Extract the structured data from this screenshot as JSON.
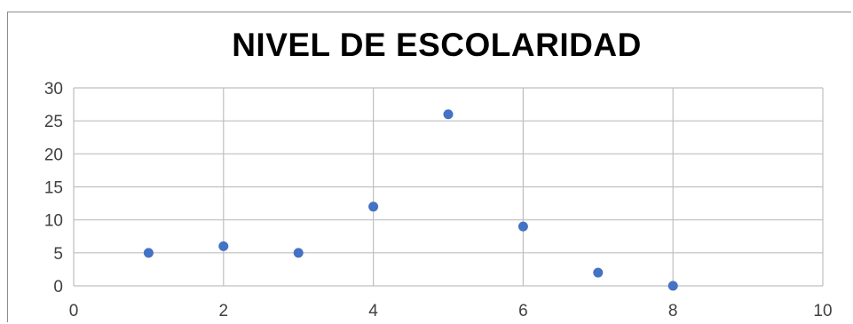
{
  "chart_data": {
    "type": "scatter",
    "title": "NIVEL DE ESCOLARIDAD",
    "xlabel": "",
    "ylabel": "",
    "xlim": [
      0,
      10
    ],
    "ylim": [
      0,
      30
    ],
    "x_ticks": [
      "0",
      "2",
      "4",
      "6",
      "8",
      "10"
    ],
    "y_ticks": [
      "0",
      "5",
      "10",
      "15",
      "20",
      "25",
      "30"
    ],
    "grid": true,
    "legend": "none",
    "series": [
      {
        "color": "#4472c4",
        "points": [
          {
            "x": 1,
            "y": 5
          },
          {
            "x": 2,
            "y": 6
          },
          {
            "x": 3,
            "y": 5
          },
          {
            "x": 4,
            "y": 12
          },
          {
            "x": 5,
            "y": 26
          },
          {
            "x": 6,
            "y": 9
          },
          {
            "x": 7,
            "y": 2
          },
          {
            "x": 8,
            "y": 0
          }
        ]
      }
    ]
  }
}
